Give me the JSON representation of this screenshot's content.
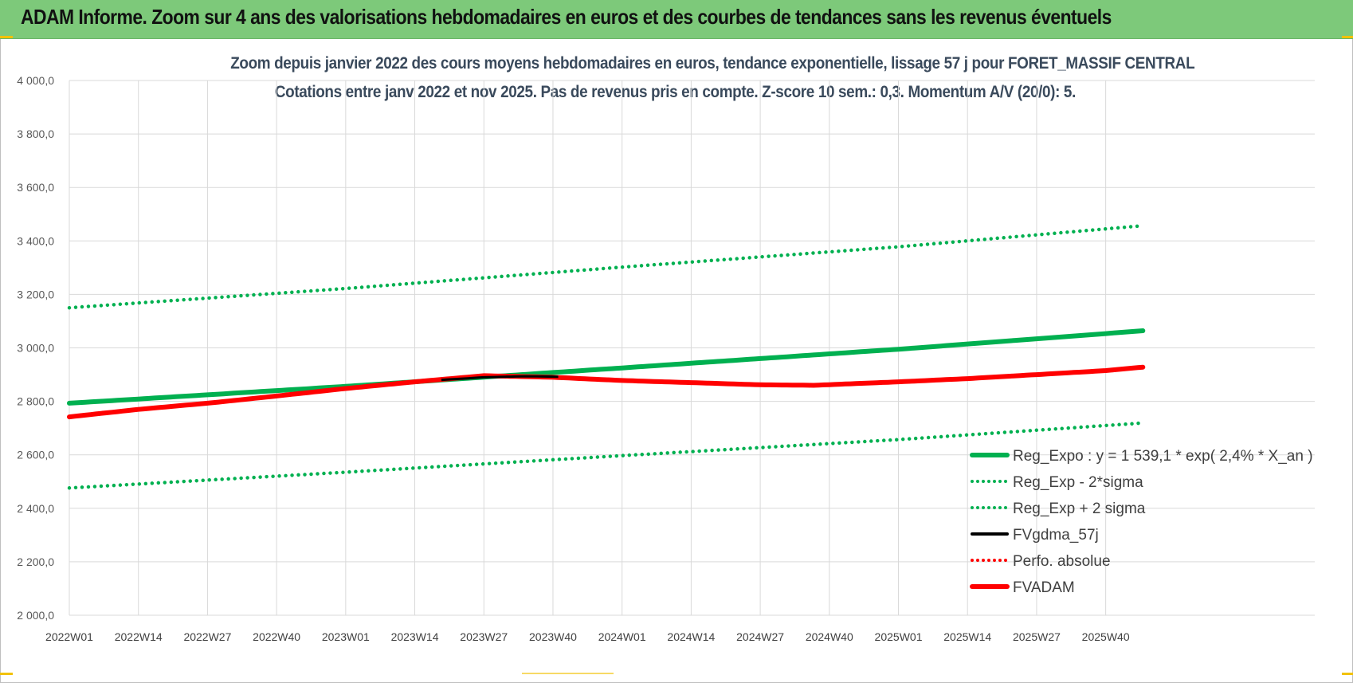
{
  "header": {
    "title": "ADAM Informe. Zoom sur 4 ans des valorisations hebdomadaires en euros et des courbes de tendances sans les revenus éventuels",
    "background": "#7dc97a"
  },
  "chart_data": {
    "type": "line",
    "title": "Zoom depuis janvier 2022 des cours moyens hebdomadaires en euros, tendance exponentielle, lissage 57 j pour FORET_MASSIF CENTRAL",
    "subtitle": "Cotations entre janv 2022 et nov 2025. Pas de revenus pris en compte. Z-score 10 sem.: 0,3. Momentum A/V (20/0): 5.",
    "xlabel": "",
    "ylabel": "",
    "ylim": [
      2000,
      4000
    ],
    "yticks": [
      "2 000,0",
      "2 200,0",
      "2 400,0",
      "2 600,0",
      "2 800,0",
      "3 000,0",
      "3 200,0",
      "3 400,0",
      "3 600,0",
      "3 800,0",
      "4 000,0"
    ],
    "x_range_weeks": [
      0,
      202
    ],
    "xticks": [
      "2022W01",
      "2022W14",
      "2022W27",
      "2022W40",
      "2023W01",
      "2023W14",
      "2023W27",
      "2023W40",
      "2024W01",
      "2024W14",
      "2024W27",
      "2024W40",
      "2025W01",
      "2025W14",
      "2025W27",
      "2025W40"
    ],
    "grid": true,
    "legend_position": "bottom-right",
    "series": [
      {
        "name": "Reg_Expo : y = 1 539,1 * exp( 2,4% * X_an )",
        "color": "#00b050",
        "style": "solid-thick",
        "points": [
          [
            0,
            2793
          ],
          [
            52,
            2856
          ],
          [
            104,
            2925
          ],
          [
            156,
            2995
          ],
          [
            202,
            3064
          ]
        ]
      },
      {
        "name": "Reg_Exp - 2*sigma",
        "color": "#00b050",
        "style": "dotted",
        "points": [
          [
            0,
            2476
          ],
          [
            52,
            2535
          ],
          [
            104,
            2597
          ],
          [
            156,
            2657
          ],
          [
            202,
            2719
          ]
        ]
      },
      {
        "name": "Reg_Exp + 2 sigma",
        "color": "#00b050",
        "style": "dotted",
        "points": [
          [
            0,
            3150
          ],
          [
            52,
            3222
          ],
          [
            104,
            3302
          ],
          [
            156,
            3378
          ],
          [
            202,
            3457
          ]
        ]
      },
      {
        "name": "FVgdma_57j",
        "color": "#000000",
        "style": "solid",
        "points": [
          [
            70,
            2880
          ],
          [
            78,
            2890
          ],
          [
            86,
            2894
          ],
          [
            92,
            2892
          ]
        ]
      },
      {
        "name": "Perfo. absolue",
        "color": "#ff0000",
        "style": "dotted",
        "points": []
      },
      {
        "name": "FVADAM",
        "color": "#ff0000",
        "style": "solid-thick",
        "points": [
          [
            0,
            2742
          ],
          [
            13,
            2770
          ],
          [
            26,
            2793
          ],
          [
            39,
            2820
          ],
          [
            52,
            2848
          ],
          [
            65,
            2873
          ],
          [
            78,
            2896
          ],
          [
            91,
            2890
          ],
          [
            104,
            2878
          ],
          [
            117,
            2870
          ],
          [
            130,
            2862
          ],
          [
            140,
            2860
          ],
          [
            156,
            2873
          ],
          [
            169,
            2885
          ],
          [
            182,
            2900
          ],
          [
            195,
            2915
          ],
          [
            202,
            2928
          ]
        ]
      }
    ]
  }
}
